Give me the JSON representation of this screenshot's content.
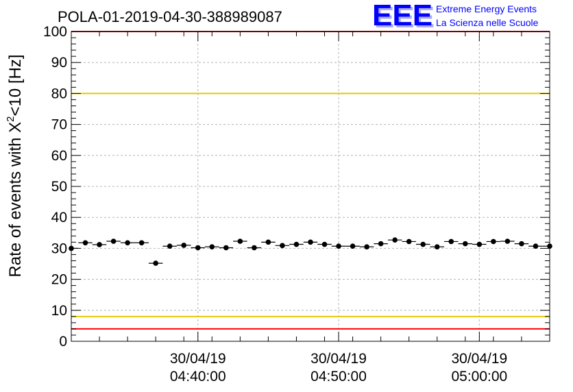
{
  "chart_data": {
    "type": "scatter",
    "title": "POLA-01-2019-04-30-388989087",
    "ylabel_main": "Rate of events with X",
    "ylabel_sup": "2",
    "ylabel_tail": "<10 [Hz]",
    "ylim": [
      0,
      100
    ],
    "yticks": [
      "0",
      "10",
      "20",
      "30",
      "40",
      "50",
      "60",
      "70",
      "80",
      "90",
      "100"
    ],
    "xlim": [
      "2019-04-30T04:31:00",
      "2019-04-30T05:05:00"
    ],
    "xticks": [
      {
        "time": "2019-04-30T04:40:00",
        "date": "30/04/19",
        "clock": "04:40:00"
      },
      {
        "time": "2019-04-30T04:50:00",
        "date": "30/04/19",
        "clock": "04:50:00"
      },
      {
        "time": "2019-04-30T05:00:00",
        "date": "30/04/19",
        "clock": "05:00:00"
      }
    ],
    "grid": true,
    "series": [
      {
        "x": [
          "04:31:00",
          "04:32:00",
          "04:33:00",
          "04:34:00",
          "04:35:00",
          "04:36:00",
          "04:37:00",
          "04:38:00",
          "04:39:00",
          "04:40:00",
          "04:41:00",
          "04:42:00",
          "04:43:00",
          "04:44:00",
          "04:45:00",
          "04:46:00",
          "04:47:00",
          "04:48:00",
          "04:49:00",
          "04:50:00",
          "04:51:00",
          "04:52:00",
          "04:53:00",
          "04:54:00",
          "04:55:00",
          "04:56:00",
          "04:57:00",
          "04:58:00",
          "04:59:00",
          "05:00:00",
          "05:01:00",
          "05:02:00",
          "05:03:00",
          "05:04:00",
          "05:05:00"
        ],
        "values": [
          30.0,
          31.8,
          31.2,
          32.3,
          31.8,
          31.8,
          25.2,
          30.7,
          31.0,
          30.2,
          30.5,
          30.2,
          32.3,
          30.2,
          32.0,
          30.9,
          31.3,
          32.0,
          31.3,
          30.7,
          30.7,
          30.5,
          31.5,
          32.7,
          32.2,
          31.3,
          30.5,
          32.2,
          31.5,
          31.3,
          32.2,
          32.3,
          31.5,
          30.7,
          30.7
        ]
      }
    ],
    "threshold_lines": [
      {
        "value": 100,
        "color": "#ff0000"
      },
      {
        "value": 80,
        "color": "#e6c800"
      },
      {
        "value": 8,
        "color": "#e6c800"
      },
      {
        "value": 4,
        "color": "#ff0000"
      }
    ],
    "marker_color": "#000000"
  },
  "logo": {
    "mark": "EEE",
    "line1": "Extreme Energy Events",
    "line2": "La Scienza nelle Scuole",
    "color": "#0000ff"
  }
}
